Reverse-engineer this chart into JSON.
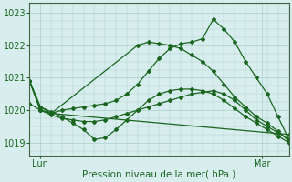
{
  "title": "",
  "xlabel": "Pression niveau de la mer( hPa )",
  "bg_color": "#d8eeee",
  "grid_color": "#aacccc",
  "line_color": "#1a6620",
  "xlim": [
    0,
    48
  ],
  "ylim": [
    1018.6,
    1023.3
  ],
  "yticks": [
    1019,
    1020,
    1021,
    1022,
    1023
  ],
  "xtick_positions": [
    2,
    43
  ],
  "xtick_labels": [
    "Lun",
    "Mar"
  ],
  "vline_x": 34,
  "series": [
    {
      "x": [
        0,
        2,
        4,
        6,
        8,
        10,
        12,
        14,
        16,
        18,
        20,
        22,
        24,
        26,
        28,
        30,
        32,
        34,
        36,
        38,
        40,
        42,
        44,
        46,
        48
      ],
      "y": [
        1020.9,
        1020.1,
        1019.9,
        1020.0,
        1020.05,
        1020.1,
        1020.15,
        1020.2,
        1020.3,
        1020.5,
        1020.8,
        1021.2,
        1021.6,
        1021.9,
        1022.05,
        1022.1,
        1022.2,
        1022.8,
        1022.5,
        1022.1,
        1021.5,
        1021.0,
        1020.5,
        1019.8,
        1019.1
      ]
    },
    {
      "x": [
        0,
        2,
        4,
        20,
        22,
        24,
        26,
        28,
        30,
        32,
        34,
        36,
        38,
        40,
        42,
        44,
        46,
        48
      ],
      "y": [
        1020.9,
        1020.0,
        1019.9,
        1022.0,
        1022.1,
        1022.05,
        1022.0,
        1021.9,
        1021.7,
        1021.5,
        1021.2,
        1020.8,
        1020.4,
        1020.1,
        1019.8,
        1019.6,
        1019.35,
        1019.05
      ]
    },
    {
      "x": [
        0,
        2,
        4,
        6,
        8,
        10,
        12,
        14,
        16,
        18,
        20,
        22,
        24,
        26,
        28,
        30,
        32,
        34,
        36,
        38,
        40,
        42,
        44,
        46,
        48
      ],
      "y": [
        1020.2,
        1020.0,
        1019.85,
        1019.75,
        1019.7,
        1019.65,
        1019.65,
        1019.7,
        1019.8,
        1019.9,
        1020.0,
        1020.1,
        1020.2,
        1020.3,
        1020.4,
        1020.5,
        1020.55,
        1020.6,
        1020.5,
        1020.3,
        1020.0,
        1019.7,
        1019.5,
        1019.3,
        1019.1
      ]
    },
    {
      "x": [
        0,
        2,
        4,
        6,
        8,
        10,
        12,
        14,
        16,
        18,
        20,
        22,
        24,
        26,
        28,
        30,
        32,
        34,
        36,
        38,
        40,
        42,
        44,
        46,
        48
      ],
      "y": [
        1020.9,
        1020.1,
        1019.95,
        1019.8,
        1019.6,
        1019.4,
        1019.1,
        1019.15,
        1019.4,
        1019.7,
        1020.0,
        1020.3,
        1020.5,
        1020.6,
        1020.65,
        1020.65,
        1020.6,
        1020.5,
        1020.3,
        1020.05,
        1019.8,
        1019.6,
        1019.4,
        1019.2,
        1019.0
      ]
    },
    {
      "x": [
        0,
        2,
        4,
        48
      ],
      "y": [
        1020.9,
        1020.0,
        1019.9,
        1019.25
      ]
    }
  ]
}
